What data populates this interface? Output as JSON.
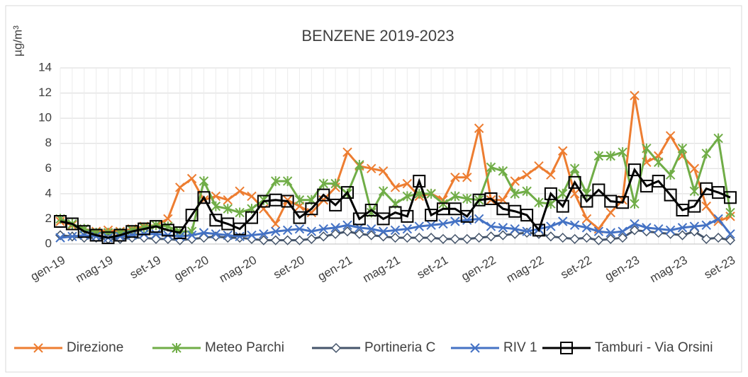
{
  "chart_data": {
    "type": "line",
    "title": "BENZENE 2019-2023",
    "y_label": "µg/m³",
    "categories": [
      "gen-19",
      null,
      null,
      null,
      "mag-19",
      null,
      null,
      null,
      "set-19",
      null,
      null,
      null,
      "gen-20",
      null,
      null,
      null,
      "mag-20",
      null,
      null,
      null,
      "set-20",
      null,
      null,
      null,
      "gen-21",
      null,
      null,
      null,
      "mag-21",
      null,
      null,
      null,
      "set-21",
      null,
      null,
      null,
      "gen-22",
      null,
      null,
      null,
      "mag-22",
      null,
      null,
      null,
      "set-22",
      null,
      null,
      null,
      "gen-23",
      null,
      null,
      null,
      "mag-23",
      null,
      null,
      null,
      "set-23"
    ],
    "ylim": [
      0,
      14
    ],
    "yticks": [
      0,
      2,
      4,
      6,
      8,
      10,
      12,
      14
    ],
    "grid": true,
    "legend": "bottom",
    "series": [
      {
        "name": "Direzione",
        "color": "#ed7d31",
        "marker": "x",
        "values": [
          1.8,
          1.5,
          1.2,
          1.0,
          1.1,
          1.0,
          1.2,
          1.4,
          1.5,
          2.0,
          4.5,
          5.2,
          3.5,
          3.8,
          3.5,
          4.2,
          3.8,
          2.8,
          1.6,
          3.5,
          3.0,
          2.5,
          3.5,
          4.5,
          7.3,
          6.2,
          6.0,
          5.8,
          4.5,
          4.8,
          3.8,
          4.0,
          3.5,
          5.3,
          5.3,
          9.2,
          3.5,
          3.5,
          5.0,
          5.5,
          6.2,
          5.5,
          7.4,
          4.0,
          2.0,
          1.2,
          2.5,
          3.5,
          11.8,
          6.5,
          7.0,
          8.6,
          7.0,
          6.0,
          3.0,
          1.8,
          2.2
        ]
      },
      {
        "name": "Meteo Parchi",
        "color": "#70ad47",
        "marker": "star",
        "values": [
          2.0,
          1.6,
          1.2,
          0.9,
          0.9,
          0.9,
          1.1,
          1.3,
          1.5,
          1.4,
          1.0,
          1.0,
          5.0,
          3.0,
          2.8,
          2.5,
          2.8,
          3.5,
          5.0,
          5.0,
          3.5,
          3.5,
          4.8,
          4.8,
          4.0,
          6.3,
          2.5,
          4.2,
          3.2,
          3.8,
          4.0,
          4.0,
          3.2,
          3.8,
          3.6,
          3.5,
          6.1,
          5.8,
          4.0,
          4.2,
          3.3,
          3.2,
          4.0,
          6.0,
          4.0,
          7.0,
          7.0,
          7.3,
          3.2,
          7.6,
          6.5,
          5.5,
          7.6,
          4.2,
          7.2,
          8.4,
          2.5
        ]
      },
      {
        "name": "Portineria C",
        "color": "#44546a",
        "marker": "diamond",
        "values": [
          0.7,
          0.6,
          0.5,
          0.5,
          0.4,
          0.4,
          0.5,
          0.5,
          0.4,
          0.4,
          0.3,
          0.4,
          0.5,
          0.6,
          0.5,
          0.5,
          0.4,
          0.3,
          0.3,
          0.3,
          0.3,
          0.4,
          0.6,
          0.8,
          1.0,
          0.8,
          0.7,
          0.6,
          0.5,
          0.5,
          0.5,
          0.5,
          0.4,
          0.4,
          0.4,
          0.5,
          0.6,
          0.7,
          0.8,
          0.9,
          0.8,
          0.6,
          0.5,
          0.4,
          0.5,
          0.3,
          0.4,
          0.5,
          1.1,
          1.0,
          0.9,
          0.8,
          0.7,
          1.0,
          0.4,
          0.5,
          0.3
        ]
      },
      {
        "name": "RIV 1",
        "color": "#4472c4",
        "marker": "x",
        "values": [
          0.5,
          0.6,
          0.7,
          0.6,
          0.5,
          0.6,
          0.7,
          0.8,
          0.8,
          0.7,
          0.6,
          0.7,
          0.9,
          0.8,
          0.7,
          0.6,
          0.7,
          0.8,
          1.0,
          1.1,
          1.2,
          1.0,
          1.2,
          1.3,
          1.5,
          1.3,
          1.2,
          1.0,
          1.1,
          1.2,
          1.4,
          1.5,
          1.6,
          1.8,
          1.9,
          2.0,
          1.4,
          1.3,
          1.2,
          1.0,
          1.2,
          1.4,
          1.8,
          1.5,
          1.3,
          1.0,
          0.9,
          1.0,
          1.6,
          1.3,
          1.2,
          1.1,
          1.3,
          1.4,
          1.5,
          2.0,
          0.8
        ]
      },
      {
        "name": "Tamburi - Via Orsini",
        "color": "#000000",
        "marker": "square",
        "values": [
          1.8,
          1.6,
          1.0,
          0.7,
          0.5,
          0.7,
          1.0,
          1.2,
          1.4,
          1.1,
          0.9,
          2.3,
          3.7,
          1.9,
          1.6,
          1.2,
          2.1,
          3.4,
          3.5,
          3.4,
          2.1,
          2.8,
          3.9,
          3.1,
          4.1,
          2.0,
          2.7,
          2.0,
          2.5,
          2.2,
          5.0,
          2.3,
          2.8,
          2.8,
          2.2,
          3.5,
          3.6,
          2.8,
          2.6,
          2.3,
          1.1,
          4.0,
          3.0,
          4.9,
          3.4,
          4.3,
          3.4,
          3.3,
          5.9,
          4.6,
          5.0,
          3.9,
          2.7,
          3.0,
          4.4,
          4.1,
          3.7
        ]
      }
    ]
  }
}
